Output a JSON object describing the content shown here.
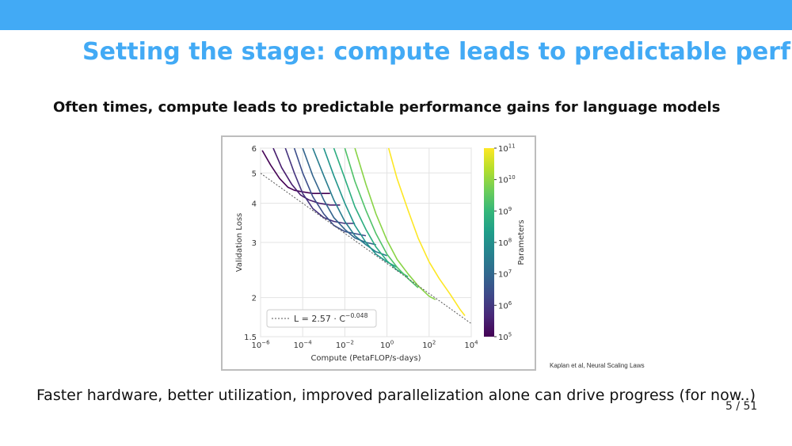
{
  "colors": {
    "accent": "#42aaf5",
    "topbar": "#42aaf5"
  },
  "slide": {
    "title": "Setting the stage: compute leads to predictable perf",
    "subtitle": "Often times, compute leads to predictable performance gains  for language models",
    "caption": "Kaplan et al, Neural Scaling Laws",
    "bottom_text": "Faster hardware, better utilization, improved parallelization alone can drive progress (for now..)",
    "page_number": "5 / 51"
  },
  "chart_data": {
    "type": "line",
    "xlabel": "Compute (PetaFLOP/s-days)",
    "ylabel": "Validation Loss",
    "xscale": "log",
    "yscale": "log",
    "xlim": [
      1e-06,
      10000
    ],
    "ylim": [
      1.5,
      6
    ],
    "x_ticks": [
      {
        "value": 1e-06,
        "base": "10",
        "exp": "−6"
      },
      {
        "value": 0.0001,
        "base": "10",
        "exp": "−4"
      },
      {
        "value": 0.01,
        "base": "10",
        "exp": "−2"
      },
      {
        "value": 1,
        "base": "10",
        "exp": "0"
      },
      {
        "value": 100,
        "base": "10",
        "exp": "2"
      },
      {
        "value": 10000,
        "base": "10",
        "exp": "4"
      }
    ],
    "y_ticks": [
      {
        "value": 1.5,
        "label": "1.5"
      },
      {
        "value": 2,
        "label": "2"
      },
      {
        "value": 3,
        "label": "3"
      },
      {
        "value": 4,
        "label": "4"
      },
      {
        "value": 5,
        "label": "5"
      },
      {
        "value": 6,
        "label": "6"
      }
    ],
    "grid": true,
    "frontier": {
      "label_prefix": "L = 2.57 · C",
      "label_exp": "−0.048",
      "coef": 2.57,
      "exponent": -0.048
    },
    "legend_position": "bottom-left",
    "colorbar": {
      "label": "Parameters",
      "min_exp": 5,
      "max_exp": 11,
      "ticks": [
        {
          "base": "10",
          "exp": "5"
        },
        {
          "base": "10",
          "exp": "6"
        },
        {
          "base": "10",
          "exp": "7"
        },
        {
          "base": "10",
          "exp": "8"
        },
        {
          "base": "10",
          "exp": "9"
        },
        {
          "base": "10",
          "exp": "10"
        },
        {
          "base": "10",
          "exp": "11"
        }
      ],
      "colormap": [
        "#440154",
        "#482878",
        "#3e4989",
        "#31688e",
        "#26828e",
        "#1f9e89",
        "#35b779",
        "#6ece58",
        "#b5de2b",
        "#fde725"
      ]
    },
    "series": [
      {
        "color_value": 0.0,
        "points": [
          [
            1.2e-06,
            5.9
          ],
          [
            3e-06,
            5.3
          ],
          [
            8e-06,
            4.8
          ],
          [
            2e-05,
            4.5
          ],
          [
            4e-05,
            4.4
          ],
          [
            0.0001,
            4.35
          ],
          [
            0.0003,
            4.3
          ],
          [
            0.001,
            4.3
          ],
          [
            0.002,
            4.3
          ]
        ]
      },
      {
        "color_value": 0.08,
        "points": [
          [
            4e-06,
            6.0
          ],
          [
            1e-05,
            5.2
          ],
          [
            3e-05,
            4.6
          ],
          [
            8e-05,
            4.25
          ],
          [
            0.0002,
            4.1
          ],
          [
            0.0006,
            4.0
          ],
          [
            0.002,
            3.95
          ],
          [
            0.006,
            3.95
          ]
        ]
      },
      {
        "color_value": 0.15,
        "points": [
          [
            1.5e-05,
            6.0
          ],
          [
            4e-05,
            5.0
          ],
          [
            0.0001,
            4.3
          ],
          [
            0.0003,
            3.85
          ],
          [
            0.001,
            3.6
          ],
          [
            0.003,
            3.5
          ],
          [
            0.01,
            3.45
          ],
          [
            0.03,
            3.45
          ]
        ]
      },
      {
        "color_value": 0.24,
        "points": [
          [
            4e-05,
            6.0
          ],
          [
            0.0001,
            5.0
          ],
          [
            0.0003,
            4.2
          ],
          [
            0.001,
            3.7
          ],
          [
            0.003,
            3.4
          ],
          [
            0.01,
            3.25
          ],
          [
            0.03,
            3.2
          ],
          [
            0.1,
            3.15
          ]
        ]
      },
      {
        "color_value": 0.32,
        "points": [
          [
            0.0001,
            6.0
          ],
          [
            0.0003,
            4.9
          ],
          [
            0.001,
            4.1
          ],
          [
            0.003,
            3.6
          ],
          [
            0.01,
            3.3
          ],
          [
            0.03,
            3.1
          ],
          [
            0.1,
            3.0
          ],
          [
            0.3,
            2.95
          ]
        ]
      },
      {
        "color_value": 0.42,
        "points": [
          [
            0.0003,
            6.0
          ],
          [
            0.001,
            4.9
          ],
          [
            0.003,
            4.1
          ],
          [
            0.01,
            3.5
          ],
          [
            0.03,
            3.15
          ],
          [
            0.1,
            2.95
          ],
          [
            0.3,
            2.8
          ],
          [
            1,
            2.72
          ]
        ]
      },
      {
        "color_value": 0.52,
        "points": [
          [
            0.001,
            6.0
          ],
          [
            0.003,
            4.9
          ],
          [
            0.01,
            4.0
          ],
          [
            0.03,
            3.4
          ],
          [
            0.1,
            3.0
          ],
          [
            0.3,
            2.75
          ],
          [
            1,
            2.6
          ],
          [
            3,
            2.5
          ]
        ]
      },
      {
        "color_value": 0.62,
        "points": [
          [
            0.003,
            6.0
          ],
          [
            0.01,
            4.8
          ],
          [
            0.03,
            3.9
          ],
          [
            0.1,
            3.3
          ],
          [
            0.3,
            2.9
          ],
          [
            1,
            2.62
          ],
          [
            3,
            2.45
          ],
          [
            10,
            2.33
          ]
        ]
      },
      {
        "color_value": 0.72,
        "points": [
          [
            0.01,
            6.0
          ],
          [
            0.03,
            4.7
          ],
          [
            0.1,
            3.8
          ],
          [
            0.3,
            3.2
          ],
          [
            1,
            2.75
          ],
          [
            3,
            2.5
          ],
          [
            10,
            2.3
          ],
          [
            30,
            2.15
          ]
        ]
      },
      {
        "color_value": 0.82,
        "points": [
          [
            0.03,
            6.0
          ],
          [
            0.1,
            4.6
          ],
          [
            0.3,
            3.7
          ],
          [
            1,
            3.05
          ],
          [
            3,
            2.65
          ],
          [
            10,
            2.38
          ],
          [
            30,
            2.18
          ],
          [
            100,
            2.02
          ],
          [
            200,
            1.97
          ]
        ]
      },
      {
        "color_value": 1.0,
        "points": [
          [
            1.2,
            6.0
          ],
          [
            3,
            4.8
          ],
          [
            10,
            3.8
          ],
          [
            30,
            3.1
          ],
          [
            100,
            2.6
          ],
          [
            300,
            2.3
          ],
          [
            1000,
            2.05
          ],
          [
            3000,
            1.83
          ],
          [
            5000,
            1.75
          ]
        ]
      }
    ]
  }
}
